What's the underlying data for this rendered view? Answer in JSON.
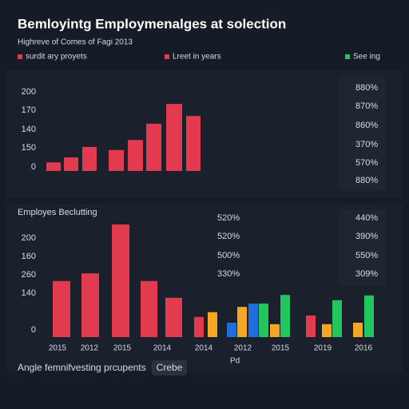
{
  "header": {
    "title": "Bemloyintg Employmenalges at solection",
    "subtitle": "Highreve of Comes of Fagi 2013"
  },
  "legend": [
    {
      "name": "surdit ary proyets",
      "color": "#e23a4e"
    },
    {
      "name": "Lreet in years",
      "color": "#e23a4e"
    },
    {
      "name": "See ing",
      "color": "#22c55e"
    }
  ],
  "chart_data": [
    {
      "type": "bar",
      "ylim": [
        0,
        200
      ],
      "y_labels": [
        "200",
        "170",
        "140",
        "150",
        "0"
      ],
      "right_labels": [
        "880%",
        "870%",
        "860%",
        "370%",
        "570%",
        "880%"
      ],
      "values": [
        22,
        35,
        62,
        54,
        80,
        122,
        173,
        142
      ],
      "color": "#e23a4e"
    },
    {
      "type": "bar",
      "title": "Employes Beclutting",
      "ylim": [
        0,
        250
      ],
      "y_labels": [
        "200",
        "160",
        "260",
        "140",
        "0"
      ],
      "middle_labels": [
        "520%",
        "520%",
        "500%",
        "330%"
      ],
      "right_labels": [
        "440%",
        "390%",
        "550%",
        "309%"
      ],
      "x_labels": [
        "2015",
        "2012",
        "2015",
        "2014",
        "2014",
        "2012",
        "2015",
        "2019",
        "2016"
      ],
      "xlabel": "Pd",
      "values": [
        117,
        133,
        235,
        117,
        82,
        42,
        52,
        30,
        63,
        70,
        70,
        27,
        88,
        45,
        27,
        77,
        30,
        87
      ],
      "colors": [
        "#e23a4e",
        "#e23a4e",
        "#e23a4e",
        "#e23a4e",
        "#e23a4e",
        "#e23a4e",
        "#f5a623",
        "#1e6ee0",
        "#f5a623",
        "#1e6ee0",
        "#22c55e",
        "#f5a623",
        "#22c55e",
        "#e23a4e",
        "#f5a623",
        "#22c55e",
        "#f5a623",
        "#22c55e"
      ]
    }
  ],
  "footer": {
    "text": "Angle femnifvesting prcupents",
    "button": "Crebe"
  }
}
